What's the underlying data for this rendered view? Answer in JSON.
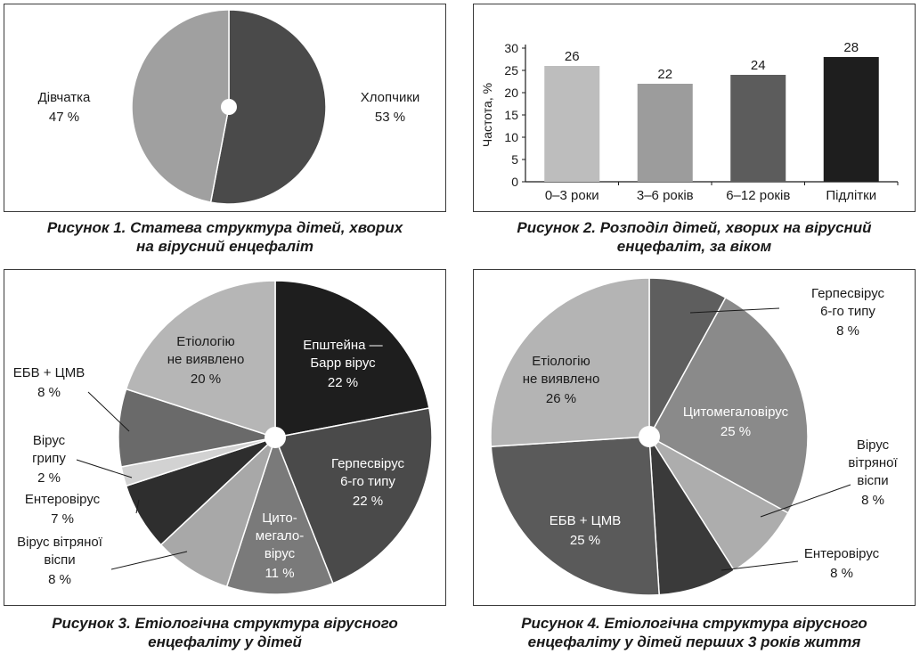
{
  "figures": [
    {
      "caption": [
        "Рисунок 1.  Статева структура дітей, хворих",
        "на вірусний енцефаліт"
      ]
    },
    {
      "caption": [
        "Рисунок 2.  Розподіл дітей, хворих на вірусний",
        "енцефаліт, за віком"
      ]
    },
    {
      "caption": [
        "Рисунок 3.  Етіологічна структура вірусного",
        "енцефаліту у дітей"
      ]
    },
    {
      "caption": [
        "Рисунок 4.  Етіологічна структура вірусного",
        "енцефаліту у дітей перших 3 років життя"
      ]
    }
  ],
  "chart_data": [
    {
      "type": "pie",
      "slices": [
        {
          "label": [
            "Хлопчики"
          ],
          "pct": "53 %",
          "value": 53,
          "color": "#4a4a4a"
        },
        {
          "label": [
            "Дівчатка"
          ],
          "pct": "47 %",
          "value": 47,
          "color": "#a0a0a0"
        }
      ]
    },
    {
      "type": "bar",
      "ylabel": "Частота, %",
      "ylim": [
        0,
        30
      ],
      "yticks": [
        0,
        5,
        10,
        15,
        20,
        25,
        30
      ],
      "categories": [
        "0–3 роки",
        "3–6 років",
        "6–12 років",
        "Підлітки"
      ],
      "values": [
        26,
        22,
        24,
        28
      ],
      "value_labels": [
        "26",
        "22",
        "24",
        "28"
      ],
      "colors": [
        "#bdbdbd",
        "#9c9c9c",
        "#5c5c5c",
        "#1e1e1e"
      ]
    },
    {
      "type": "pie",
      "slices": [
        {
          "label": [
            "Епштейна —",
            "Барр вірус"
          ],
          "pct": "22 %",
          "value": 22,
          "color": "#1e1e1e",
          "text": "#ffffff"
        },
        {
          "label": [
            "Герпесвірус",
            "6-го типу"
          ],
          "pct": "22 %",
          "value": 22,
          "color": "#4a4a4a",
          "text": "#ffffff"
        },
        {
          "label": [
            "Цито-",
            "мегало-",
            "вірус"
          ],
          "pct": "11 %",
          "value": 11,
          "color": "#7a7a7a",
          "text": "#ffffff"
        },
        {
          "label": [
            "Вірус вітряної",
            "віспи"
          ],
          "pct": "8 %",
          "value": 8,
          "color": "#a8a8a8",
          "text": "#1a1a1a"
        },
        {
          "label": [
            "Ентеровірус"
          ],
          "pct": "7 %",
          "value": 7,
          "color": "#2e2e2e",
          "text": "#1a1a1a"
        },
        {
          "label": [
            "Вірус",
            "грипу"
          ],
          "pct": "2 %",
          "value": 2,
          "color": "#d2d2d2",
          "text": "#1a1a1a"
        },
        {
          "label": [
            "ЕБВ + ЦМВ"
          ],
          "pct": "8 %",
          "value": 8,
          "color": "#6a6a6a",
          "text": "#1a1a1a"
        },
        {
          "label": [
            "Етіологію",
            "не виявлено"
          ],
          "pct": "20 %",
          "value": 20,
          "color": "#b6b6b6",
          "text": "#1a1a1a"
        }
      ]
    },
    {
      "type": "pie",
      "slices": [
        {
          "label": [
            "Герпесвірус",
            "6-го типу"
          ],
          "pct": "8 %",
          "value": 8,
          "color": "#5e5e5e",
          "text": "#1a1a1a"
        },
        {
          "label": [
            "Цитомегаловірус"
          ],
          "pct": "25 %",
          "value": 25,
          "color": "#8a8a8a",
          "text": "#ffffff"
        },
        {
          "label": [
            "Вірус",
            "вітряної",
            "віспи"
          ],
          "pct": "8 %",
          "value": 8,
          "color": "#adadad",
          "text": "#1a1a1a"
        },
        {
          "label": [
            "Ентеровірус"
          ],
          "pct": "8 %",
          "value": 8,
          "color": "#3a3a3a",
          "text": "#1a1a1a"
        },
        {
          "label": [
            "ЕБВ + ЦМВ"
          ],
          "pct": "25 %",
          "value": 25,
          "color": "#5a5a5a",
          "text": "#ffffff"
        },
        {
          "label": [
            "Етіологію",
            "не виявлено"
          ],
          "pct": "26 %",
          "value": 26,
          "color": "#b4b4b4",
          "text": "#1a1a1a"
        }
      ]
    }
  ]
}
